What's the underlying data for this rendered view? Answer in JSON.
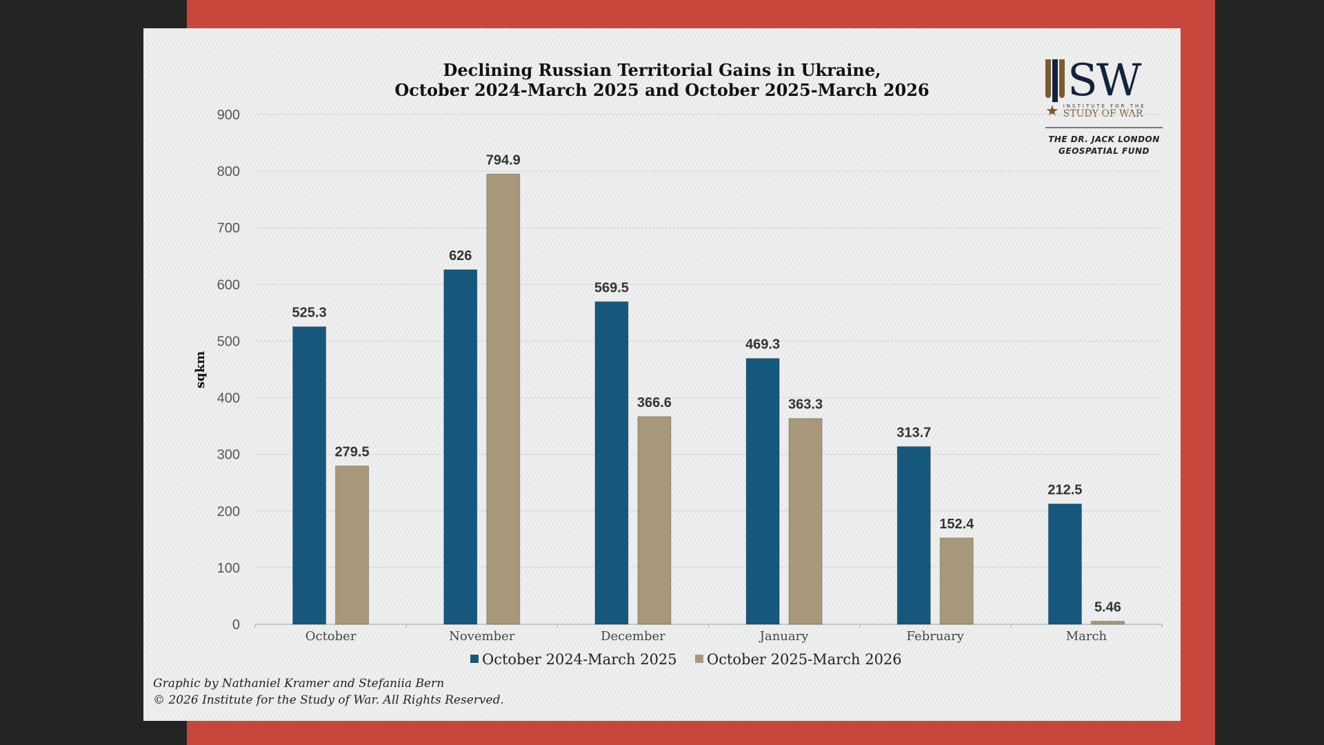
{
  "chart_data": {
    "type": "bar",
    "title_lines": [
      "Declining Russian Territorial Gains in Ukraine,",
      "October 2024-March 2025 and October 2025-March 2026"
    ],
    "categories": [
      "October",
      "November",
      "December",
      "January",
      "February",
      "March"
    ],
    "series": [
      {
        "name": "October 2024-March 2025",
        "color": "#16587b",
        "values": [
          525.3,
          626,
          569.5,
          469.3,
          313.7,
          212.5
        ],
        "labels": [
          "525.3",
          "626",
          "569.5",
          "469.3",
          "313.7",
          "212.5"
        ]
      },
      {
        "name": "October 2025-March 2026",
        "color": "#a8987a",
        "values": [
          279.5,
          794.9,
          366.6,
          363.3,
          152.4,
          5.46
        ],
        "labels": [
          "279.5",
          "794.9",
          "366.6",
          "363.3",
          "152.4",
          "5.46"
        ]
      }
    ],
    "xlabel": "",
    "ylabel": "sqkm",
    "ylim": [
      0,
      900
    ],
    "yticks": [
      0,
      100,
      200,
      300,
      400,
      500,
      600,
      700,
      800,
      900
    ],
    "grid": true,
    "legend": "bottom-center"
  },
  "logo": {
    "letters": "SW",
    "subtitle_small": "INSTITUTE FOR THE",
    "subtitle_big": "STUDY OF WAR",
    "fund_line1": "THE DR. JACK LONDON",
    "fund_line2": "GEOSPATIAL FUND"
  },
  "credits": {
    "line1": "Graphic by Nathaniel Kramer and Stefaniia Bern",
    "line2": "© 2026 Institute for the Study of War. All Rights Reserved."
  },
  "colors": {
    "frame_red": "#c8473d",
    "background": "#242424",
    "paper": "#eceded"
  }
}
